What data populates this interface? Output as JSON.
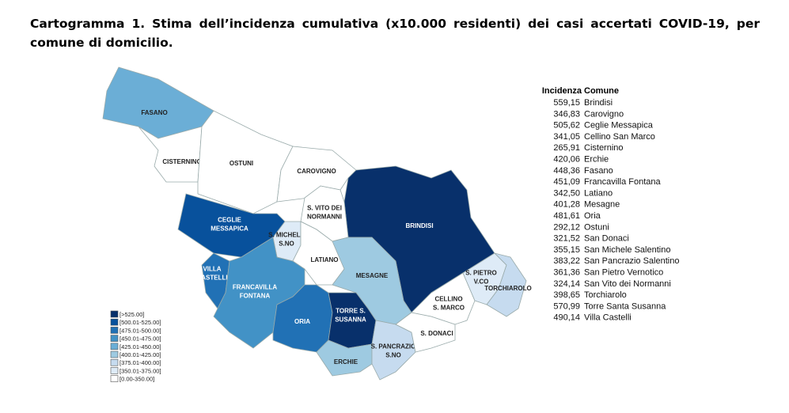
{
  "title": "Cartogramma 1. Stima dell’incidenza cumulativa (x10.000 residenti) dei casi accertati COVID-19, per comune di domicilio.",
  "map": {
    "regions": [
      {
        "label": [
          "FASANO"
        ],
        "color": "#6baed6"
      },
      {
        "label": [
          "CISTERNINO"
        ],
        "color": "#ffffff"
      },
      {
        "label": [
          "OSTUNI"
        ],
        "color": "#ffffff"
      },
      {
        "label": [
          "CAROVIGNO"
        ],
        "color": "#ffffff"
      },
      {
        "label": [
          "BRINDISI"
        ],
        "color": "#08306b"
      },
      {
        "label": [
          "S. VITO DEI",
          "NORMANNI"
        ],
        "color": "#ffffff"
      },
      {
        "label": [
          "CEGLIE",
          "MESSAPICA"
        ],
        "color": "#08519c"
      },
      {
        "label": [
          "S. MICHELE",
          "S.NO"
        ],
        "color": "#deebf7"
      },
      {
        "label": [
          "LATIANO"
        ],
        "color": "#ffffff"
      },
      {
        "label": [
          "VILLA",
          "CASTELLI"
        ],
        "color": "#2171b5"
      },
      {
        "label": [
          "FRANCAVILLA",
          "FONTANA"
        ],
        "color": "#4292c6"
      },
      {
        "label": [
          "ORIA"
        ],
        "color": "#2171b5"
      },
      {
        "label": [
          "MESAGNE"
        ],
        "color": "#9ecae1"
      },
      {
        "label": [
          "TORRE S.",
          "SUSANNA"
        ],
        "color": "#08306b"
      },
      {
        "label": [
          "ERCHIE"
        ],
        "color": "#9ecae1"
      },
      {
        "label": [
          "S. PANCRAZIO",
          "S.NO"
        ],
        "color": "#c6dbef"
      },
      {
        "label": [
          "S. DONACI"
        ],
        "color": "#ffffff"
      },
      {
        "label": [
          "CELLINO",
          "S. MARCO"
        ],
        "color": "#ffffff"
      },
      {
        "label": [
          "S. PIETRO",
          "V.CO"
        ],
        "color": "#deebf7"
      },
      {
        "label": [
          "TORCHIAROLO"
        ],
        "color": "#c6dbef"
      }
    ],
    "legend": [
      {
        "label": "[>525.00]",
        "color": "#08306b"
      },
      {
        "label": "[500.01-525.00]",
        "color": "#08519c"
      },
      {
        "label": "[475.01-500.00]",
        "color": "#2171b5"
      },
      {
        "label": "[450.01-475.00]",
        "color": "#4292c6"
      },
      {
        "label": "[425.01-450.00]",
        "color": "#6baed6"
      },
      {
        "label": "[400.01-425.00]",
        "color": "#9ecae1"
      },
      {
        "label": "[375.01-400.00]",
        "color": "#c6dbef"
      },
      {
        "label": "[350.01-375.00]",
        "color": "#deebf7"
      },
      {
        "label": "[0.00-350.00]",
        "color": "#ffffff"
      }
    ]
  },
  "table": {
    "header": [
      "Incidenza",
      "Comune"
    ],
    "rows": [
      [
        "559,15",
        "Brindisi"
      ],
      [
        "346,83",
        "Carovigno"
      ],
      [
        "505,62",
        "Ceglie Messapica"
      ],
      [
        "341,05",
        "Cellino San Marco"
      ],
      [
        "265,91",
        "Cisternino"
      ],
      [
        "420,06",
        "Erchie"
      ],
      [
        "448,36",
        "Fasano"
      ],
      [
        "451,09",
        "Francavilla Fontana"
      ],
      [
        "342,50",
        "Latiano"
      ],
      [
        "401,28",
        "Mesagne"
      ],
      [
        "481,61",
        "Oria"
      ],
      [
        "292,12",
        "Ostuni"
      ],
      [
        "321,52",
        "San Donaci"
      ],
      [
        "355,15",
        "San Michele Salentino"
      ],
      [
        "383,22",
        "San Pancrazio Salentino"
      ],
      [
        "361,36",
        "San Pietro Vernotico"
      ],
      [
        "324,14",
        "San Vito dei Normanni"
      ],
      [
        "398,65",
        "Torchiarolo"
      ],
      [
        "570,99",
        "Torre Santa Susanna"
      ],
      [
        "490,14",
        "Villa Castelli"
      ]
    ]
  }
}
